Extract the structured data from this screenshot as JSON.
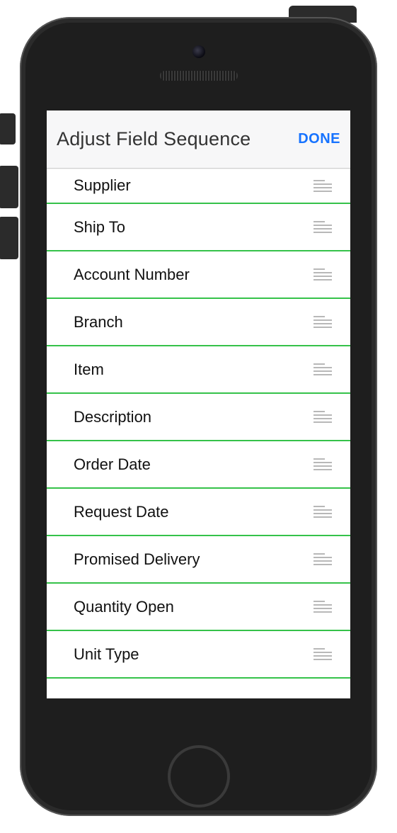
{
  "header": {
    "title": "Adjust Field Sequence",
    "done_label": "DONE"
  },
  "colors": {
    "accent": "#1773ff",
    "row_divider": "#35c24a",
    "header_bg": "#f7f7f8",
    "drag_handle": "#b8b8b8"
  },
  "fields": [
    {
      "label": "Supplier"
    },
    {
      "label": "Ship To"
    },
    {
      "label": "Account Number"
    },
    {
      "label": "Branch"
    },
    {
      "label": "Item"
    },
    {
      "label": "Description"
    },
    {
      "label": "Order Date"
    },
    {
      "label": "Request Date"
    },
    {
      "label": "Promised Delivery"
    },
    {
      "label": "Quantity Open"
    },
    {
      "label": "Unit Type"
    }
  ]
}
